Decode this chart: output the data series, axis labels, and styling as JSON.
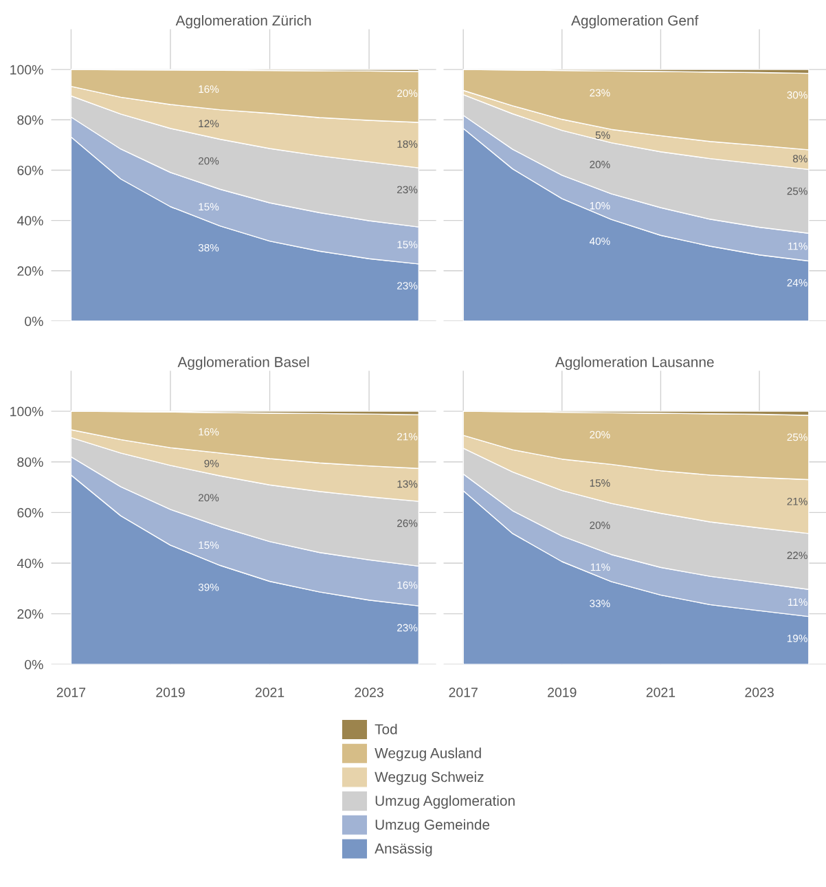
{
  "chart_data": [
    {
      "type": "area",
      "stacked": true,
      "title": "Agglomeration Zürich",
      "x": [
        2017,
        2018,
        2019,
        2020,
        2021,
        2022,
        2023,
        2024
      ],
      "xlim": [
        2016.6,
        2024.35
      ],
      "xticks": [
        2017,
        2019,
        2021,
        2023
      ],
      "ylim": [
        0,
        116
      ],
      "yticks": [
        {
          "value": 0,
          "label": "0%"
        },
        {
          "value": 20,
          "label": "20%"
        },
        {
          "value": 40,
          "label": "40%"
        },
        {
          "value": 60,
          "label": "60%"
        },
        {
          "value": 80,
          "label": "80%"
        },
        {
          "value": 100,
          "label": "100%"
        }
      ],
      "grid": true,
      "tick_labels": "y",
      "legend": "bottom",
      "series": [
        {
          "name": "Ansässig",
          "color": "#7896c4",
          "values": [
            73.2,
            56.5,
            45.5,
            37.8,
            31.8,
            27.8,
            24.8,
            22.7
          ],
          "value_labels": [
            null,
            null,
            null,
            "38%",
            null,
            null,
            null,
            "23%"
          ]
        },
        {
          "name": "Umzug Gemeinde",
          "color": "#a1b3d4",
          "values": [
            7.9,
            11.9,
            13.6,
            14.6,
            15.2,
            15.3,
            15.1,
            14.7
          ],
          "value_labels": [
            null,
            null,
            null,
            "15%",
            null,
            null,
            null,
            "15%"
          ]
        },
        {
          "name": "Umzug Agglomeration",
          "color": "#cfcfcf",
          "values": [
            8.4,
            13.9,
            17.5,
            19.9,
            21.6,
            22.6,
            23.4,
            23.5
          ],
          "value_labels": [
            null,
            null,
            null,
            "20%",
            null,
            null,
            null,
            "23%"
          ]
        },
        {
          "name": "Wegzug Schweiz",
          "color": "#e7d3ab",
          "values": [
            3.8,
            6.7,
            9.5,
            11.7,
            14.0,
            15.2,
            16.5,
            18.1
          ],
          "value_labels": [
            null,
            null,
            null,
            "12%",
            null,
            null,
            null,
            "18%"
          ]
        },
        {
          "name": "Wegzug Ausland",
          "color": "#d6bd87",
          "values": [
            6.7,
            10.9,
            13.7,
            15.7,
            17.0,
            18.6,
            19.6,
            20.2
          ],
          "value_labels": [
            null,
            null,
            null,
            "16%",
            null,
            null,
            null,
            "20%"
          ]
        },
        {
          "name": "Tod",
          "color": "#9c844d",
          "values": [
            0,
            0.1,
            0.2,
            0.3,
            0.4,
            0.5,
            0.6,
            0.8
          ]
        }
      ]
    },
    {
      "type": "area",
      "stacked": true,
      "title": "Agglomeration Genf",
      "x": [
        2017,
        2018,
        2019,
        2020,
        2021,
        2022,
        2023,
        2024
      ],
      "xlim": [
        2016.6,
        2024.35
      ],
      "xticks": [
        2017,
        2019,
        2021,
        2023
      ],
      "ylim": [
        0,
        116
      ],
      "yticks": [
        0,
        20,
        40,
        60,
        80,
        100
      ],
      "grid": true,
      "tick_labels": false,
      "series": [
        {
          "color": "#7896c4",
          "values": [
            76.6,
            60.5,
            48.7,
            40.4,
            34.1,
            29.8,
            26.3,
            23.9
          ],
          "value_labels": [
            null,
            null,
            null,
            "40%",
            null,
            null,
            null,
            "24%"
          ]
        },
        {
          "color": "#a1b3d4",
          "values": [
            5.2,
            7.8,
            9.3,
            10.2,
            11.0,
            10.7,
            11.0,
            11.0
          ],
          "value_labels": [
            null,
            null,
            null,
            "10%",
            null,
            null,
            null,
            "11%"
          ]
        },
        {
          "color": "#cfcfcf",
          "values": [
            8.2,
            14.1,
            17.8,
            20.3,
            22.2,
            24.1,
            25.1,
            25.4
          ],
          "value_labels": [
            null,
            null,
            null,
            "20%",
            null,
            null,
            null,
            "25%"
          ]
        },
        {
          "color": "#e7d3ab",
          "values": [
            1.7,
            3.2,
            4.4,
            5.3,
            6.4,
            6.8,
            7.4,
            7.8
          ],
          "value_labels": [
            null,
            null,
            null,
            "5%",
            null,
            null,
            null,
            "8%"
          ]
        },
        {
          "color": "#d6bd87",
          "values": [
            8.3,
            14.2,
            19.4,
            23.2,
            25.5,
            27.6,
            29.0,
            30.4
          ],
          "value_labels": [
            null,
            null,
            null,
            "23%",
            null,
            null,
            null,
            "30%"
          ]
        },
        {
          "color": "#9c844d",
          "values": [
            0,
            0.2,
            0.4,
            0.6,
            0.8,
            1.0,
            1.2,
            1.5
          ]
        }
      ]
    },
    {
      "type": "area",
      "stacked": true,
      "title": "Agglomeration Basel",
      "x": [
        2017,
        2018,
        2019,
        2020,
        2021,
        2022,
        2023,
        2024
      ],
      "xlim": [
        2016.6,
        2024.35
      ],
      "xticks": [
        2017,
        2019,
        2021,
        2023
      ],
      "ylim": [
        0,
        116
      ],
      "yticks": [
        {
          "value": 0,
          "label": "0%"
        },
        {
          "value": 20,
          "label": "20%"
        },
        {
          "value": 40,
          "label": "40%"
        },
        {
          "value": 60,
          "label": "60%"
        },
        {
          "value": 80,
          "label": "80%"
        },
        {
          "value": 100,
          "label": "100%"
        }
      ],
      "grid": true,
      "series": [
        {
          "color": "#7896c4",
          "values": [
            74.8,
            58.7,
            47.1,
            39.1,
            32.8,
            28.6,
            25.4,
            23.1
          ],
          "value_labels": [
            null,
            null,
            null,
            "39%",
            null,
            null,
            null,
            "23%"
          ]
        },
        {
          "color": "#a1b3d4",
          "values": [
            7.2,
            11.5,
            14.1,
            15.3,
            15.7,
            15.6,
            15.9,
            15.7
          ],
          "value_labels": [
            null,
            null,
            null,
            "15%",
            null,
            null,
            null,
            "16%"
          ]
        },
        {
          "color": "#cfcfcf",
          "values": [
            7.6,
            13.3,
            17.4,
            20.1,
            22.4,
            24.1,
            24.9,
            25.6
          ],
          "value_labels": [
            null,
            null,
            null,
            "20%",
            null,
            null,
            null,
            "26%"
          ]
        },
        {
          "color": "#e7d3ab",
          "values": [
            3.1,
            5.3,
            7.0,
            9.0,
            10.4,
            11.3,
            12.2,
            13.0
          ],
          "value_labels": [
            null,
            null,
            null,
            "9%",
            null,
            null,
            null,
            "13%"
          ]
        },
        {
          "color": "#d6bd87",
          "values": [
            7.3,
            11.1,
            14.1,
            16.0,
            18.0,
            19.5,
            20.5,
            21.2
          ],
          "value_labels": [
            null,
            null,
            null,
            "16%",
            null,
            null,
            null,
            "21%"
          ]
        },
        {
          "color": "#9c844d",
          "values": [
            0,
            0.1,
            0.3,
            0.5,
            0.7,
            0.9,
            1.1,
            1.4
          ]
        }
      ]
    },
    {
      "type": "area",
      "stacked": true,
      "title": "Agglomeration Lausanne",
      "x": [
        2017,
        2018,
        2019,
        2020,
        2021,
        2022,
        2023,
        2024
      ],
      "xlim": [
        2016.6,
        2024.35
      ],
      "xticks": [
        2017,
        2019,
        2021,
        2023
      ],
      "ylim": [
        0,
        116
      ],
      "yticks": [
        0,
        20,
        40,
        60,
        80,
        100
      ],
      "grid": true,
      "tick_labels": "x",
      "series": [
        {
          "color": "#7896c4",
          "values": [
            68.6,
            51.7,
            40.6,
            32.7,
            27.4,
            23.6,
            21.2,
            18.9
          ],
          "value_labels": [
            null,
            null,
            null,
            "33%",
            null,
            null,
            null,
            "19%"
          ]
        },
        {
          "color": "#a1b3d4",
          "values": [
            6.6,
            9.0,
            10.1,
            10.7,
            10.9,
            11.2,
            11.0,
            10.7
          ],
          "value_labels": [
            null,
            null,
            null,
            "11%",
            null,
            null,
            null,
            "11%"
          ]
        },
        {
          "color": "#cfcfcf",
          "values": [
            10.2,
            15.3,
            18.0,
            20.2,
            21.4,
            21.5,
            21.7,
            22.1
          ],
          "value_labels": [
            null,
            null,
            null,
            "20%",
            null,
            null,
            null,
            "22%"
          ]
        },
        {
          "color": "#e7d3ab",
          "values": [
            5.1,
            8.8,
            12.4,
            15.4,
            16.8,
            18.5,
            19.9,
            21.3
          ],
          "value_labels": [
            null,
            null,
            null,
            "15%",
            null,
            null,
            null,
            "21%"
          ]
        },
        {
          "color": "#d6bd87",
          "values": [
            9.5,
            15.0,
            18.5,
            20.4,
            22.7,
            24.2,
            25.0,
            25.4
          ],
          "value_labels": [
            null,
            null,
            null,
            "20%",
            null,
            null,
            null,
            "25%"
          ]
        },
        {
          "color": "#9c844d",
          "values": [
            0,
            0.2,
            0.4,
            0.6,
            0.8,
            1.0,
            1.2,
            1.6
          ]
        }
      ]
    }
  ]
}
